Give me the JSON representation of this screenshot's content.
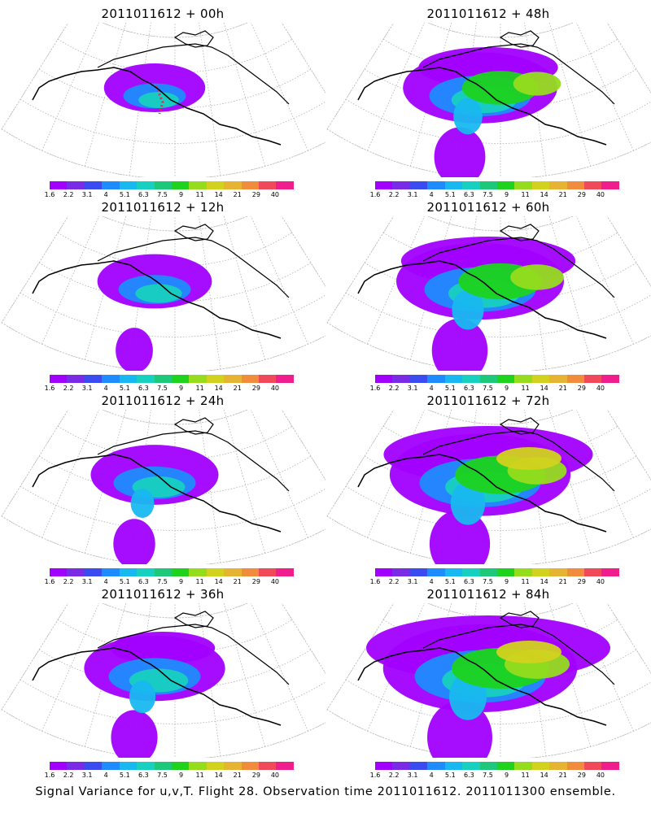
{
  "panels": [
    {
      "title": "2011011612 + 00h",
      "stage": 0
    },
    {
      "title": "2011011612 + 48h",
      "stage": 4
    },
    {
      "title": "2011011612 + 12h",
      "stage": 1
    },
    {
      "title": "2011011612 + 60h",
      "stage": 5
    },
    {
      "title": "2011011612 + 24h",
      "stage": 2
    },
    {
      "title": "2011011612 + 72h",
      "stage": 6
    },
    {
      "title": "2011011612 + 36h",
      "stage": 3
    },
    {
      "title": "2011011612 + 84h",
      "stage": 7
    }
  ],
  "colorbar": {
    "labels": [
      "1.6",
      "2.2",
      "3.1",
      "4",
      "5.1",
      "6.3",
      "7.5",
      "9",
      "11",
      "14",
      "21",
      "29",
      "40"
    ],
    "colors": [
      "#a100ff",
      "#7a2be6",
      "#3a4cf0",
      "#1e8cff",
      "#18b8f0",
      "#18d0c0",
      "#1ec87a",
      "#1ed21e",
      "#96dc1e",
      "#d2d21e",
      "#e6b432",
      "#f08c3c",
      "#f04a5a",
      "#f01e8c"
    ]
  },
  "footer": "Signal Variance for u,v,T. Flight 28. Observation time 2011011612. 2011011300 ensemble."
}
